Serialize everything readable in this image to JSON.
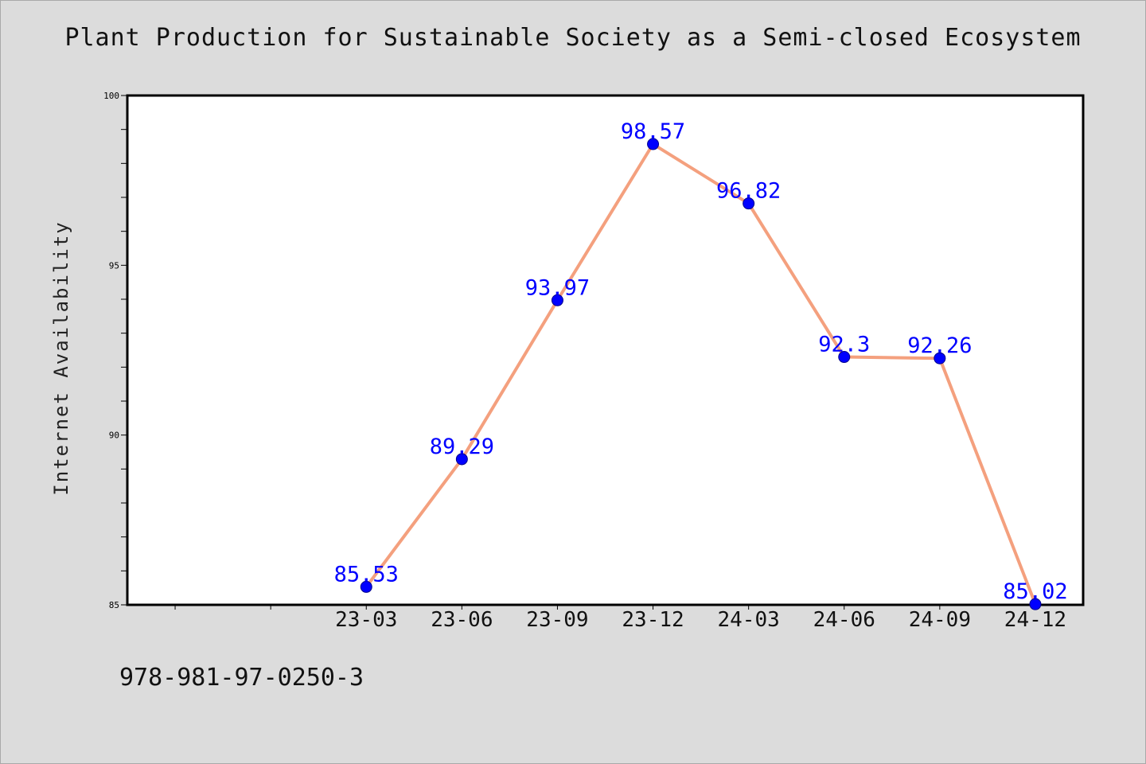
{
  "title": "Plant Production for Sustainable Society as a Semi-closed Ecosystem",
  "footer_text": "978-981-97-0250-3",
  "colors": {
    "background": "#dcdcdc",
    "plot_background": "#ffffff",
    "line": "#f4a07e",
    "marker": "#0000ff",
    "data_label": "#0000ff"
  },
  "chart_data": {
    "type": "line",
    "title": "Plant Production for Sustainable Society as a Semi-closed Ecosystem",
    "xlabel": "",
    "ylabel": "Internet Availability",
    "ylim": [
      85,
      100
    ],
    "yticks": [
      85,
      90,
      95,
      100
    ],
    "y_minor_step": 1,
    "x_slots": 10,
    "categories": [
      "23-03",
      "23-06",
      "23-09",
      "23-12",
      "24-03",
      "24-06",
      "24-09",
      "24-12"
    ],
    "category_offset": 2,
    "series": [
      {
        "values": [
          85.53,
          89.29,
          93.97,
          98.57,
          96.82,
          92.3,
          92.26,
          85.02
        ],
        "labels": [
          "85.53",
          "89.29",
          "93.97",
          "98.57",
          "96.82",
          "92.3",
          "92.26",
          "85.02"
        ]
      }
    ],
    "grid": false,
    "legend": "none"
  }
}
